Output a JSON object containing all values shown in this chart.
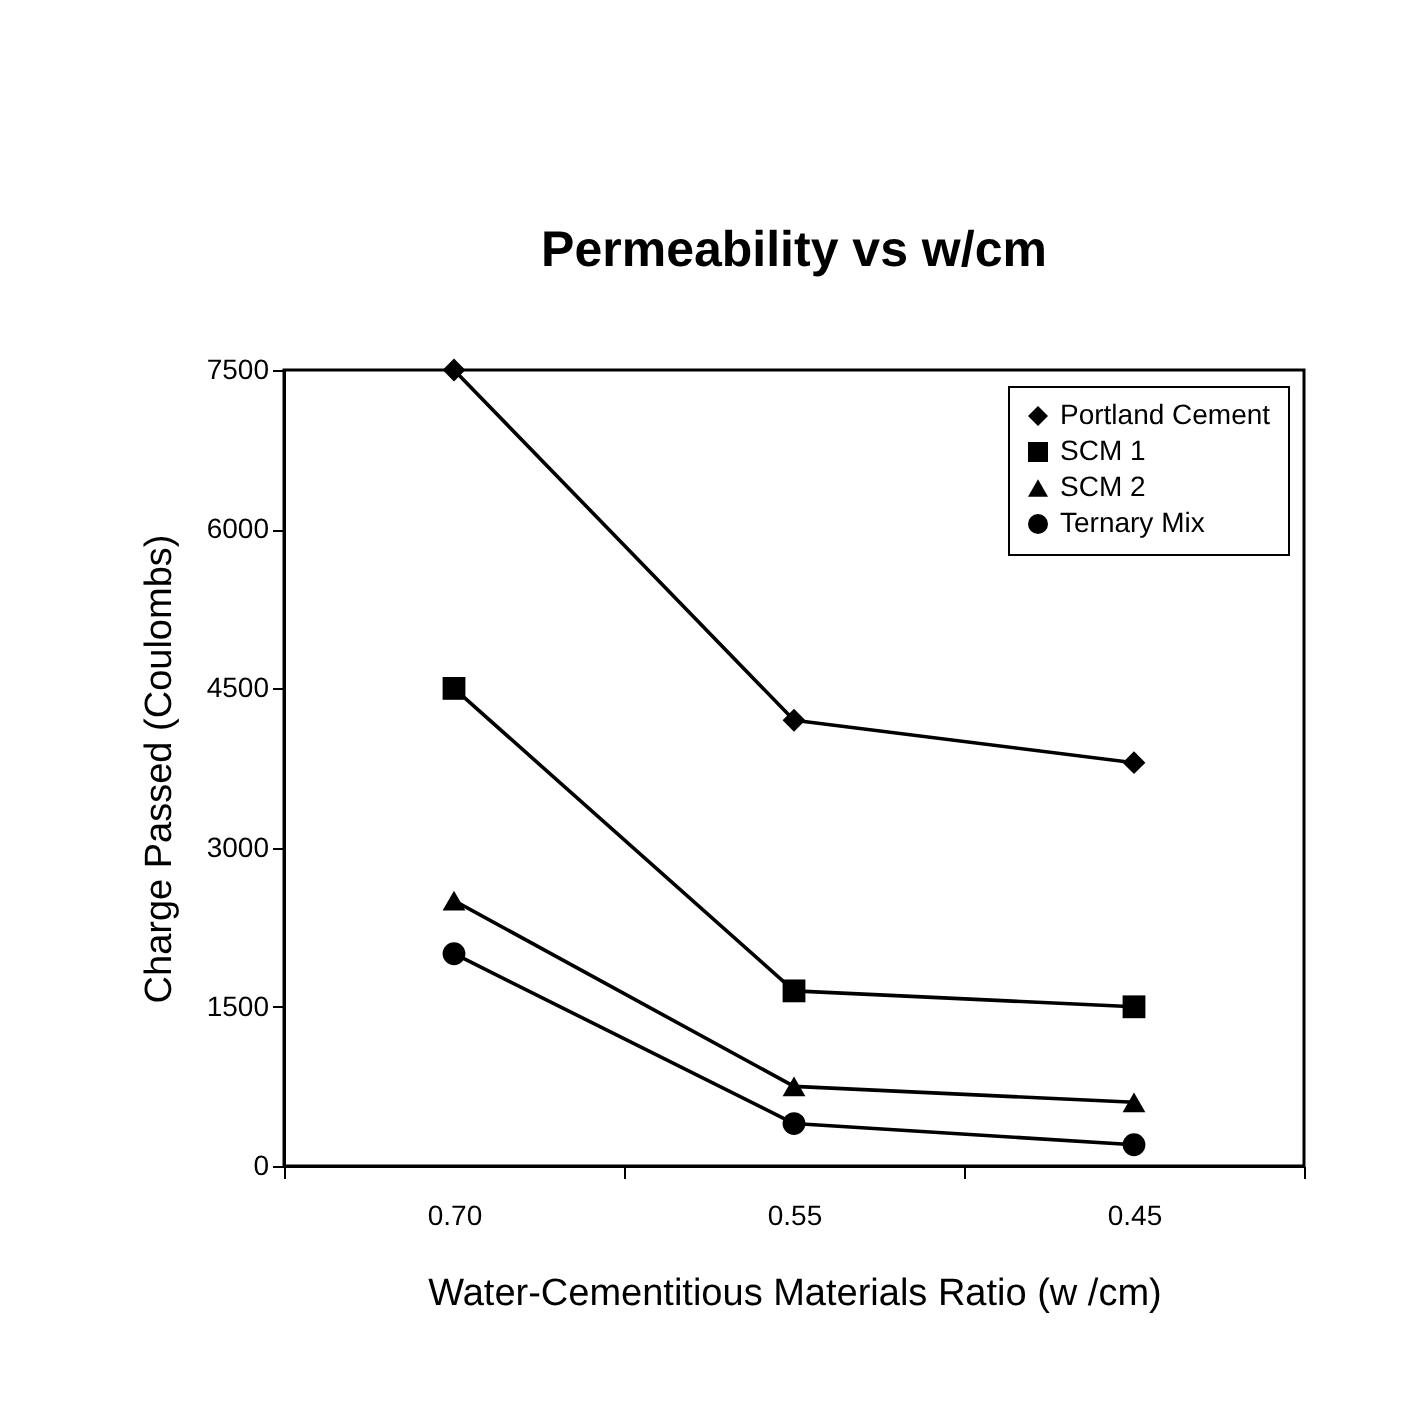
{
  "chart_data": {
    "type": "line",
    "title": "Permeability vs w/cm",
    "xlabel": "Water-Cementitious Materials Ratio (w /cm)",
    "ylabel": "Charge Passed (Coulombs)",
    "categories": [
      "0.70",
      "0.55",
      "0.45"
    ],
    "series": [
      {
        "name": "Portland Cement",
        "color": "#000000",
        "marker": "diamond",
        "values": [
          7500,
          4200,
          3800
        ]
      },
      {
        "name": "SCM 1",
        "color": "#000000",
        "marker": "square",
        "values": [
          4500,
          1650,
          1500
        ]
      },
      {
        "name": "SCM 2",
        "color": "#000000",
        "marker": "triangle",
        "values": [
          2500,
          750,
          600
        ]
      },
      {
        "name": "Ternary Mix",
        "color": "#000000",
        "marker": "circle",
        "values": [
          2000,
          400,
          200
        ]
      }
    ],
    "ylim": [
      0,
      7500
    ],
    "yticks": [
      0,
      1500,
      3000,
      4500,
      6000,
      7500
    ],
    "grid": false,
    "legend": "top right",
    "line_style": "solid"
  }
}
